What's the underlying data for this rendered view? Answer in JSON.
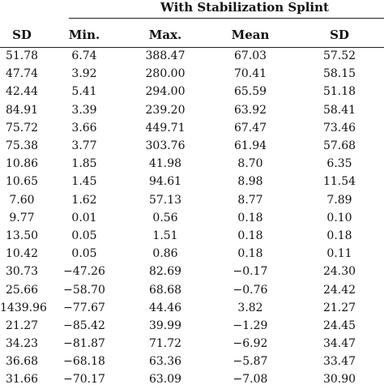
{
  "table": {
    "group_header": "With Stabilization Splint",
    "columns": [
      "SD",
      "Min.",
      "Max.",
      "Mean",
      "SD"
    ],
    "rows": [
      [
        "51.78",
        "6.74",
        "388.47",
        "67.03",
        "57.52"
      ],
      [
        "47.74",
        "3.92",
        "280.00",
        "70.41",
        "58.15"
      ],
      [
        "42.44",
        "5.41",
        "294.00",
        "65.59",
        "51.18"
      ],
      [
        "84.91",
        "3.39",
        "239.20",
        "63.92",
        "58.41"
      ],
      [
        "75.72",
        "3.66",
        "449.71",
        "67.47",
        "73.46"
      ],
      [
        "75.38",
        "3.77",
        "303.76",
        "61.94",
        "57.68"
      ],
      [
        "10.86",
        "1.85",
        "41.98",
        "8.70",
        "6.35"
      ],
      [
        "10.65",
        "1.45",
        "94.61",
        "8.98",
        "11.54"
      ],
      [
        "7.60",
        "1.62",
        "57.13",
        "8.77",
        "7.89"
      ],
      [
        "9.77",
        "0.01",
        "0.56",
        "0.18",
        "0.10"
      ],
      [
        "13.50",
        "0.05",
        "1.51",
        "0.18",
        "0.18"
      ],
      [
        "10.42",
        "0.05",
        "0.86",
        "0.18",
        "0.11"
      ],
      [
        "30.73",
        "−47.26",
        "82.69",
        "−0.17",
        "24.30"
      ],
      [
        "25.66",
        "−58.70",
        "68.68",
        "−0.76",
        "24.42"
      ],
      [
        "1439.96",
        "−77.67",
        "44.46",
        "3.82",
        "21.27"
      ],
      [
        "21.27",
        "−85.42",
        "39.99",
        "−1.29",
        "24.45"
      ],
      [
        "34.23",
        "−81.87",
        "71.72",
        "−6.92",
        "34.47"
      ],
      [
        "36.68",
        "−68.18",
        "63.36",
        "−5.87",
        "33.47"
      ],
      [
        "31.66",
        "−70.17",
        "63.09",
        "−7.08",
        "30.90"
      ]
    ]
  }
}
